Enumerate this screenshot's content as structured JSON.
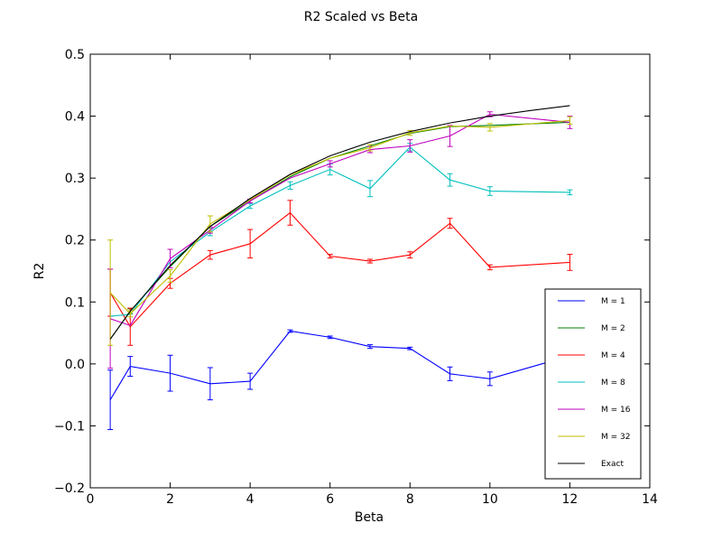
{
  "chart_data": {
    "type": "line",
    "title": "R2 Scaled vs Beta",
    "xlabel": "Beta",
    "ylabel": "R2",
    "xlim": [
      0,
      14
    ],
    "ylim": [
      -0.2,
      0.5
    ],
    "xticks": [
      0,
      2,
      4,
      6,
      8,
      10,
      12,
      14
    ],
    "yticks": [
      -0.2,
      -0.1,
      0.0,
      0.1,
      0.2,
      0.3,
      0.4,
      0.5
    ],
    "xtick_labels": [
      "0",
      "2",
      "4",
      "6",
      "8",
      "10",
      "12",
      "14"
    ],
    "ytick_labels": [
      "−0.2",
      "−0.1",
      "0.0",
      "0.1",
      "0.2",
      "0.3",
      "0.4",
      "0.5"
    ],
    "grid": false,
    "legend_position": "lower-right",
    "x": [
      0.5,
      1,
      2,
      3,
      4,
      5,
      6,
      7,
      8,
      9,
      10,
      12
    ],
    "series": [
      {
        "name": "M = 1",
        "color": "#0000ff",
        "values": [
          -0.058,
          -0.004,
          -0.015,
          -0.032,
          -0.028,
          0.053,
          0.043,
          0.028,
          0.025,
          -0.016,
          -0.024,
          0.013
        ],
        "errors": [
          0.048,
          0.016,
          0.029,
          0.026,
          0.013,
          0.002,
          0.002,
          0.003,
          0.002,
          0.011,
          0.011,
          0.0
        ]
      },
      {
        "name": "M = 2",
        "color": "#008000",
        "values": [
          0.04,
          0.085,
          0.157,
          0.222,
          0.263,
          0.302,
          0.332,
          0.352,
          0.372,
          0.383,
          0.385,
          0.39
        ],
        "errors": [
          0.0,
          0.004,
          0.0,
          0.0,
          0.0,
          0.0,
          0.0,
          0.0,
          0.0,
          0.0,
          0.0,
          0.0
        ]
      },
      {
        "name": "M = 4",
        "color": "#ff0000",
        "values": [
          0.115,
          0.06,
          0.13,
          0.176,
          0.194,
          0.244,
          0.174,
          0.166,
          0.176,
          0.227,
          0.156,
          0.164
        ],
        "errors": [
          0.038,
          0.03,
          0.008,
          0.007,
          0.023,
          0.02,
          0.003,
          0.003,
          0.005,
          0.008,
          0.004,
          0.013
        ]
      },
      {
        "name": "M = 8",
        "color": "#00bfbf",
        "values": [
          0.077,
          0.08,
          0.165,
          0.213,
          0.255,
          0.288,
          0.314,
          0.283,
          0.35,
          0.297,
          0.279,
          0.277
        ],
        "errors": [
          0.0,
          0.0,
          0.0,
          0.006,
          0.004,
          0.006,
          0.009,
          0.013,
          0.006,
          0.01,
          0.007,
          0.004
        ]
      },
      {
        "name": "M = 16",
        "color": "#bf00bf",
        "values": [
          0.073,
          0.062,
          0.17,
          0.216,
          0.263,
          0.3,
          0.323,
          0.346,
          0.352,
          0.368,
          0.403,
          0.39
        ],
        "errors": [
          0.08,
          0.0,
          0.015,
          0.005,
          0.003,
          0.0,
          0.005,
          0.005,
          0.01,
          0.017,
          0.004,
          0.01
        ]
      },
      {
        "name": "M = 32",
        "color": "#bfbf00",
        "values": [
          0.115,
          0.081,
          0.142,
          0.226,
          0.265,
          0.305,
          0.332,
          0.349,
          0.373,
          0.384,
          0.382,
          0.393
        ],
        "errors": [
          0.085,
          0.005,
          0.01,
          0.013,
          0.0,
          0.0,
          0.0,
          0.005,
          0.004,
          0.0,
          0.006,
          0.006
        ]
      },
      {
        "name": "Exact",
        "color": "#000000",
        "x": [
          0.5,
          1,
          2,
          3,
          4,
          5,
          6,
          7,
          8,
          9,
          10,
          11,
          12
        ],
        "values": [
          0.04,
          0.085,
          0.159,
          0.222,
          0.267,
          0.306,
          0.336,
          0.358,
          0.375,
          0.389,
          0.4,
          0.409,
          0.417
        ],
        "errors": null
      }
    ]
  }
}
